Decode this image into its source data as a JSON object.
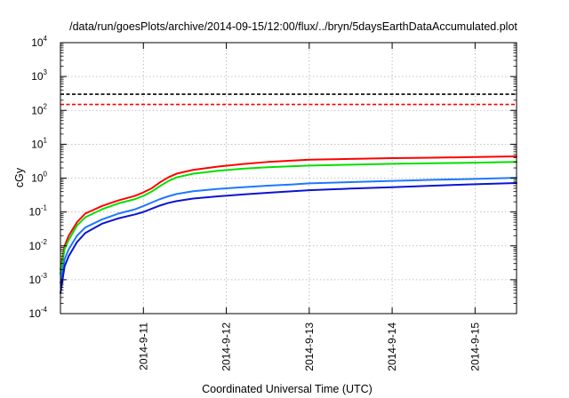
{
  "chart_data": {
    "type": "line",
    "title": "/data/run/goesPlots/archive/2014-09-15/12:00/flux/../bryn/5daysEarthDataAccumulated.plot",
    "xlabel": "Coordinated Universal Time (UTC)",
    "ylabel": "cGy",
    "x_scale": "date",
    "y_scale": "log",
    "xlim": [
      "2014-09-10T00:00",
      "2014-09-15T12:00"
    ],
    "ylim": [
      0.0001,
      10000
    ],
    "x_ticks": [
      "2014-9-11",
      "2014-9-12",
      "2014-9-13",
      "2014-9-14",
      "2014-9-15"
    ],
    "y_ticks": [
      {
        "value": 0.0001,
        "base": "10",
        "exp": "-4"
      },
      {
        "value": 0.001,
        "base": "10",
        "exp": "-3"
      },
      {
        "value": 0.01,
        "base": "10",
        "exp": "-2"
      },
      {
        "value": 0.1,
        "base": "10",
        "exp": "-1"
      },
      {
        "value": 1,
        "base": "10",
        "exp": "0"
      },
      {
        "value": 10,
        "base": "10",
        "exp": "1"
      },
      {
        "value": 100,
        "base": "10",
        "exp": "2"
      },
      {
        "value": 1000,
        "base": "10",
        "exp": "3"
      },
      {
        "value": 10000,
        "base": "10",
        "exp": "4"
      }
    ],
    "grid": true,
    "series": [
      {
        "color": "#000000",
        "dashed": true,
        "x": [
          "2014-09-10T00:00",
          "2014-09-15T12:00"
        ],
        "y": [
          300,
          300
        ]
      },
      {
        "color": "#ff0000",
        "dashed": true,
        "x": [
          "2014-09-10T00:00",
          "2014-09-15T12:00"
        ],
        "y": [
          150,
          150
        ]
      },
      {
        "color": "#ff0000",
        "dashed": false,
        "x": [
          "2014-09-10T00:00",
          "2014-09-10T01:12",
          "2014-09-10T02:24",
          "2014-09-10T04:48",
          "2014-09-10T07:12",
          "2014-09-10T12:00",
          "2014-09-10T16:48",
          "2014-09-10T21:36",
          "2014-09-11T00:00",
          "2014-09-11T02:24",
          "2014-09-11T04:48",
          "2014-09-11T07:12",
          "2014-09-11T09:36",
          "2014-09-11T14:24",
          "2014-09-11T21:36",
          "2014-09-12T04:48",
          "2014-09-12T12:00",
          "2014-09-12T19:12",
          "2014-09-13T00:00",
          "2014-09-13T12:00",
          "2014-09-14T00:00",
          "2014-09-14T12:00",
          "2014-09-15T00:00",
          "2014-09-15T12:00"
        ],
        "y": [
          0.002,
          0.01,
          0.02,
          0.05,
          0.09,
          0.15,
          0.22,
          0.3,
          0.38,
          0.5,
          0.75,
          1.05,
          1.35,
          1.75,
          2.2,
          2.6,
          3.0,
          3.3,
          3.5,
          3.7,
          3.9,
          4.0,
          4.2,
          4.4
        ]
      },
      {
        "color": "#00e000",
        "dashed": false,
        "x": [
          "2014-09-10T00:00",
          "2014-09-10T01:12",
          "2014-09-10T02:24",
          "2014-09-10T04:48",
          "2014-09-10T07:12",
          "2014-09-10T12:00",
          "2014-09-10T16:48",
          "2014-09-10T21:36",
          "2014-09-11T00:00",
          "2014-09-11T02:24",
          "2014-09-11T04:48",
          "2014-09-11T07:12",
          "2014-09-11T09:36",
          "2014-09-11T14:24",
          "2014-09-11T21:36",
          "2014-09-12T04:48",
          "2014-09-12T12:00",
          "2014-09-12T19:12",
          "2014-09-13T00:00",
          "2014-09-13T12:00",
          "2014-09-14T00:00",
          "2014-09-14T12:00",
          "2014-09-15T00:00",
          "2014-09-15T12:00"
        ],
        "y": [
          0.0015,
          0.008,
          0.015,
          0.04,
          0.07,
          0.12,
          0.18,
          0.24,
          0.3,
          0.4,
          0.58,
          0.82,
          1.05,
          1.35,
          1.65,
          1.9,
          2.1,
          2.25,
          2.35,
          2.5,
          2.65,
          2.75,
          2.85,
          3.0
        ]
      },
      {
        "color": "#1e78ff",
        "dashed": false,
        "x": [
          "2014-09-10T00:00",
          "2014-09-10T01:12",
          "2014-09-10T02:24",
          "2014-09-10T04:48",
          "2014-09-10T07:12",
          "2014-09-10T12:00",
          "2014-09-10T16:48",
          "2014-09-10T21:36",
          "2014-09-11T00:00",
          "2014-09-11T02:24",
          "2014-09-11T04:48",
          "2014-09-11T07:12",
          "2014-09-11T09:36",
          "2014-09-11T14:24",
          "2014-09-11T21:36",
          "2014-09-12T04:48",
          "2014-09-12T12:00",
          "2014-09-12T19:12",
          "2014-09-13T00:00",
          "2014-09-13T12:00",
          "2014-09-14T00:00",
          "2014-09-14T12:00",
          "2014-09-15T00:00",
          "2014-09-15T12:00"
        ],
        "y": [
          0.0008,
          0.004,
          0.008,
          0.02,
          0.035,
          0.06,
          0.09,
          0.12,
          0.15,
          0.19,
          0.24,
          0.29,
          0.34,
          0.41,
          0.48,
          0.54,
          0.6,
          0.65,
          0.7,
          0.76,
          0.83,
          0.89,
          0.95,
          1.02
        ]
      },
      {
        "color": "#0a14d2",
        "dashed": false,
        "x": [
          "2014-09-10T00:00",
          "2014-09-10T01:12",
          "2014-09-10T02:24",
          "2014-09-10T04:48",
          "2014-09-10T07:12",
          "2014-09-10T12:00",
          "2014-09-10T16:48",
          "2014-09-10T21:36",
          "2014-09-11T00:00",
          "2014-09-11T02:24",
          "2014-09-11T04:48",
          "2014-09-11T07:12",
          "2014-09-11T09:36",
          "2014-09-11T14:24",
          "2014-09-11T21:36",
          "2014-09-12T04:48",
          "2014-09-12T12:00",
          "2014-09-12T19:12",
          "2014-09-13T00:00",
          "2014-09-13T12:00",
          "2014-09-14T00:00",
          "2014-09-14T12:00",
          "2014-09-15T00:00",
          "2014-09-15T12:00"
        ],
        "y": [
          0.0004,
          0.0025,
          0.005,
          0.013,
          0.024,
          0.045,
          0.065,
          0.085,
          0.1,
          0.125,
          0.155,
          0.185,
          0.21,
          0.25,
          0.29,
          0.33,
          0.37,
          0.41,
          0.44,
          0.49,
          0.54,
          0.6,
          0.66,
          0.72
        ]
      }
    ]
  }
}
